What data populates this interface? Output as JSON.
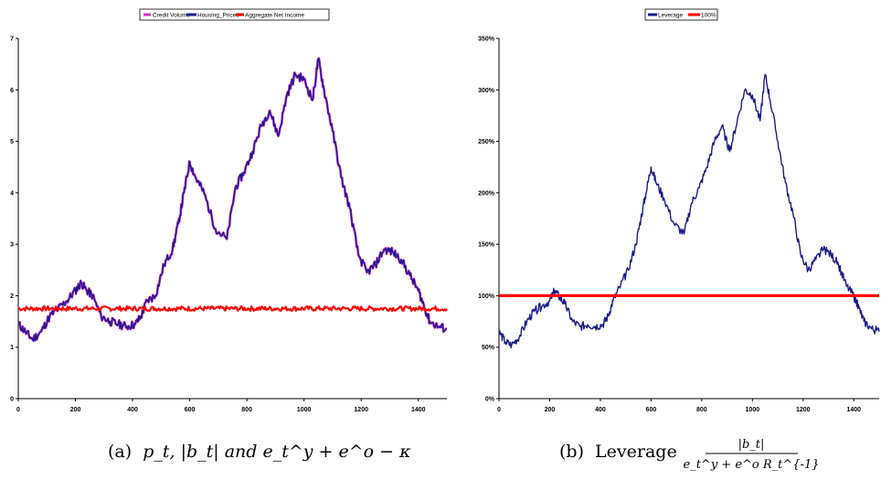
{
  "chart_data": [
    {
      "type": "line",
      "title": "",
      "xlabel": "",
      "ylabel": "",
      "xlim": [
        0,
        1500
      ],
      "ylim": [
        0,
        7
      ],
      "xticks": [
        "0",
        "200",
        "400",
        "600",
        "800",
        "1000",
        "1200",
        "1400"
      ],
      "yticks": [
        "0",
        "1",
        "2",
        "3",
        "4",
        "5",
        "6",
        "7"
      ],
      "grid": false,
      "legend_position": "top",
      "legend": [
        "Credit Volume",
        "Housing_Prices",
        "Aggregate Net Income"
      ],
      "colors": [
        "#cc33cc",
        "#1a1a8c",
        "#ff0000"
      ],
      "series": [
        {
          "name": "Credit Volume",
          "x": [
            0,
            25,
            50,
            80,
            110,
            140,
            170,
            200,
            220,
            240,
            260,
            290,
            320,
            350,
            380,
            410,
            430,
            450,
            480,
            510,
            540,
            560,
            580,
            600,
            620,
            650,
            690,
            730,
            760,
            790,
            820,
            850,
            880,
            910,
            940,
            970,
            1000,
            1030,
            1050,
            1070,
            1100,
            1130,
            1160,
            1190,
            1220,
            1250,
            1280,
            1310,
            1340,
            1370,
            1400,
            1420,
            1440,
            1470,
            1500
          ],
          "y": [
            1.45,
            1.3,
            1.15,
            1.3,
            1.6,
            1.75,
            1.9,
            2.1,
            2.25,
            2.1,
            2.0,
            1.6,
            1.5,
            1.45,
            1.4,
            1.45,
            1.6,
            1.9,
            2.0,
            2.6,
            2.9,
            3.4,
            4.0,
            4.6,
            4.3,
            4.0,
            3.3,
            3.1,
            4.1,
            4.4,
            4.8,
            5.3,
            5.6,
            5.1,
            5.9,
            6.3,
            6.2,
            5.8,
            6.6,
            6.0,
            5.2,
            4.3,
            3.7,
            2.8,
            2.45,
            2.6,
            2.9,
            2.85,
            2.7,
            2.4,
            2.1,
            1.8,
            1.5,
            1.4,
            1.35
          ]
        },
        {
          "name": "Housing_Prices",
          "x": [
            0,
            25,
            50,
            80,
            110,
            140,
            170,
            200,
            220,
            240,
            260,
            290,
            320,
            350,
            380,
            410,
            430,
            450,
            480,
            510,
            540,
            560,
            580,
            600,
            620,
            650,
            690,
            730,
            760,
            790,
            820,
            850,
            880,
            910,
            940,
            970,
            1000,
            1030,
            1050,
            1070,
            1100,
            1130,
            1160,
            1190,
            1220,
            1250,
            1280,
            1310,
            1340,
            1370,
            1400,
            1420,
            1440,
            1470,
            1500
          ],
          "y": [
            1.45,
            1.3,
            1.15,
            1.3,
            1.6,
            1.75,
            1.9,
            2.1,
            2.25,
            2.1,
            2.0,
            1.6,
            1.5,
            1.45,
            1.4,
            1.45,
            1.6,
            1.9,
            2.0,
            2.6,
            2.9,
            3.4,
            4.0,
            4.6,
            4.3,
            4.0,
            3.3,
            3.1,
            4.1,
            4.4,
            4.8,
            5.3,
            5.6,
            5.1,
            5.9,
            6.3,
            6.2,
            5.8,
            6.6,
            6.0,
            5.2,
            4.3,
            3.7,
            2.8,
            2.45,
            2.6,
            2.9,
            2.85,
            2.7,
            2.4,
            2.1,
            1.8,
            1.5,
            1.4,
            1.35
          ]
        },
        {
          "name": "Aggregate Net Income",
          "x": [
            0,
            1500
          ],
          "y": [
            1.75,
            1.75
          ]
        }
      ]
    },
    {
      "type": "line",
      "title": "",
      "xlabel": "",
      "ylabel": "",
      "xlim": [
        0,
        1500
      ],
      "ylim": [
        0,
        350
      ],
      "xticks": [
        "0",
        "200",
        "400",
        "600",
        "800",
        "1000",
        "1200",
        "1400"
      ],
      "yticks": [
        "0%",
        "50%",
        "100%",
        "150%",
        "200%",
        "250%",
        "300%",
        "350%"
      ],
      "grid": false,
      "legend_position": "top",
      "legend": [
        "Leverage",
        "100%"
      ],
      "colors": [
        "#1a1a8c",
        "#ff0000"
      ],
      "series": [
        {
          "name": "Leverage",
          "x": [
            0,
            25,
            50,
            80,
            110,
            140,
            170,
            200,
            220,
            240,
            260,
            290,
            320,
            350,
            380,
            410,
            430,
            450,
            480,
            510,
            540,
            560,
            580,
            600,
            620,
            650,
            690,
            730,
            760,
            790,
            820,
            850,
            880,
            910,
            940,
            970,
            1000,
            1030,
            1050,
            1070,
            1100,
            1130,
            1160,
            1190,
            1220,
            1250,
            1280,
            1310,
            1340,
            1370,
            1400,
            1420,
            1440,
            1470,
            1500
          ],
          "y": [
            65,
            55,
            52,
            60,
            75,
            85,
            90,
            95,
            105,
            98,
            92,
            75,
            70,
            72,
            70,
            72,
            80,
            95,
            110,
            125,
            150,
            175,
            200,
            225,
            210,
            195,
            170,
            160,
            190,
            205,
            225,
            250,
            265,
            240,
            270,
            300,
            295,
            270,
            315,
            290,
            250,
            210,
            180,
            140,
            125,
            135,
            145,
            140,
            130,
            110,
            100,
            88,
            75,
            68,
            65
          ]
        },
        {
          "name": "100%",
          "x": [
            0,
            1500
          ],
          "y": [
            100,
            100
          ]
        }
      ]
    }
  ],
  "captions": {
    "left": {
      "label": "(a)",
      "math": "p_t, |b_t| and e_t^y + e^o − κ"
    },
    "right": {
      "label": "(b)",
      "prefix": "Leverage",
      "numerator": "|b_t|",
      "denominator": "e_t^y + e^o R_t^{-1}"
    }
  }
}
